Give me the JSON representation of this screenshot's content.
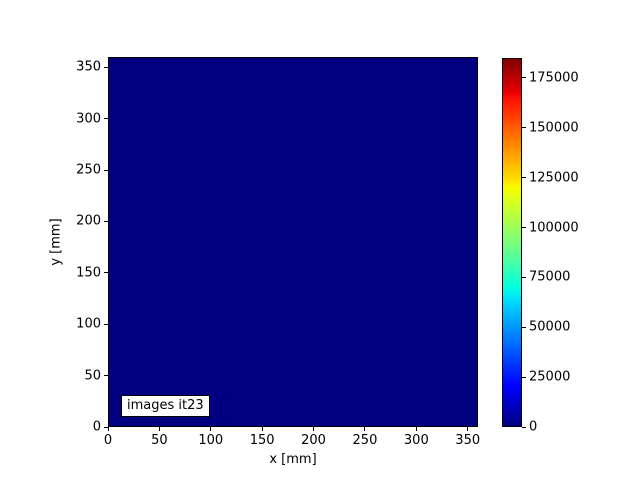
{
  "chart_data": {
    "type": "heatmap",
    "title": "",
    "xlabel": "x [mm]",
    "ylabel": "y [mm]",
    "x_ticks": [
      0,
      50,
      100,
      150,
      200,
      250,
      300,
      350
    ],
    "y_ticks": [
      0,
      50,
      100,
      150,
      200,
      250,
      300,
      350
    ],
    "x_range": [
      0,
      360
    ],
    "y_range": [
      0,
      360
    ],
    "annotation": "images it23",
    "uniform_value": 0,
    "field_color": "#000080",
    "colormap": "jet",
    "colorbar_ticks": [
      0,
      25000,
      50000,
      75000,
      100000,
      125000,
      150000,
      175000
    ],
    "colorbar_range": [
      0,
      185000
    ],
    "colormap_stops": [
      {
        "pos": 0.0,
        "color": "#000080"
      },
      {
        "pos": 0.11,
        "color": "#0000ff"
      },
      {
        "pos": 0.34,
        "color": "#00dbff"
      },
      {
        "pos": 0.375,
        "color": "#00ffe2"
      },
      {
        "pos": 0.5,
        "color": "#7bff7b"
      },
      {
        "pos": 0.65,
        "color": "#f7ff00"
      },
      {
        "pos": 0.66,
        "color": "#ffec00"
      },
      {
        "pos": 0.89,
        "color": "#ff1300"
      },
      {
        "pos": 0.91,
        "color": "#e80000"
      },
      {
        "pos": 1.0,
        "color": "#800000"
      }
    ],
    "grid": false,
    "legend": null
  }
}
